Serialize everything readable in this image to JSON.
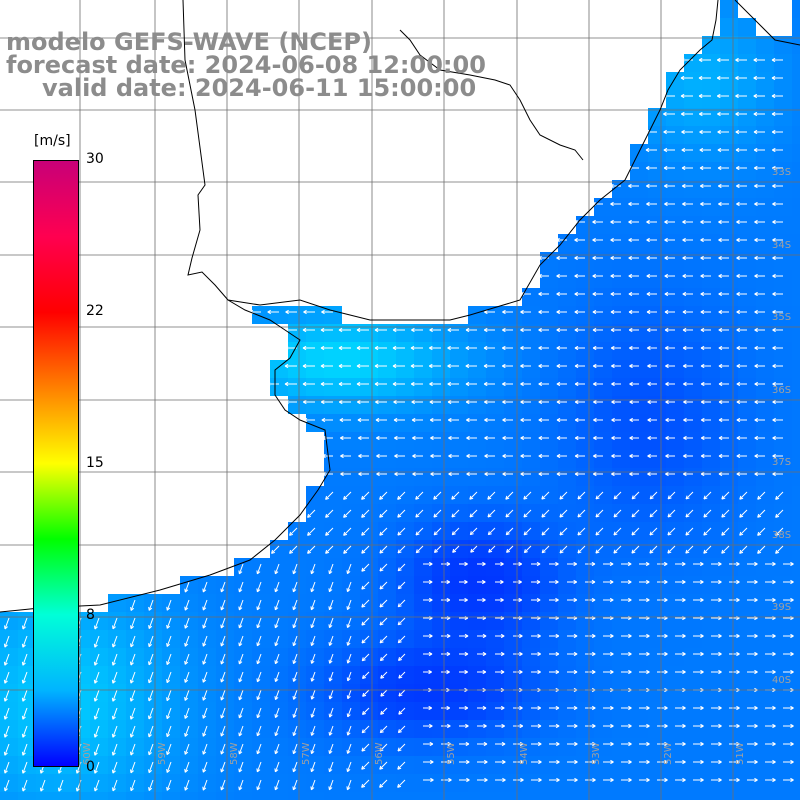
{
  "header": {
    "line1": "modelo GEFS-WAVE (NCEP)",
    "line2": "forecast date: 2024-06-08 12:00:00",
    "line3": "valid date: 2024-06-11 15:00:00"
  },
  "colorbar": {
    "unit": "[m/s]",
    "ticks": [
      "30",
      "22",
      "15",
      "8",
      "0"
    ],
    "colors": [
      "#0000ff",
      "#00b4ff",
      "#00ffd8",
      "#00ff00",
      "#ffff00",
      "#ff8000",
      "#ff0000",
      "#ff0050",
      "#c80078"
    ]
  },
  "lat_labels": [
    "33S",
    "34S",
    "35S",
    "36S",
    "37S",
    "38S",
    "39S",
    "40S"
  ],
  "lon_labels": [
    "60W",
    "59W",
    "58W",
    "57W",
    "56W",
    "55W",
    "54W",
    "53W",
    "52W",
    "51W"
  ],
  "colors": {
    "land": "#ffffff",
    "coast": "#000000",
    "grid": "#6e6e6e",
    "arrows": "#ffffff",
    "title": "#8c8c8c"
  }
}
